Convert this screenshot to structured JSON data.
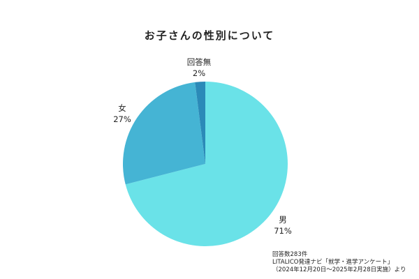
{
  "chart_data": {
    "type": "pie",
    "title": "お子さんの性別について",
    "categories": [
      "男",
      "女",
      "回答無"
    ],
    "values": [
      71,
      27,
      2
    ],
    "value_labels": [
      "71%",
      "27%",
      "2%"
    ],
    "colors": [
      "#6ae2e8",
      "#45b4d4",
      "#2b8ab8"
    ],
    "start": "top",
    "direction": "clockwise",
    "legend": "none"
  },
  "footnote": {
    "line1": "回答数283件",
    "line2": "LITALICO発達ナビ「就学・進学アンケート」",
    "line3": "（2024年12月20日～2025年2月28日実施）より"
  }
}
